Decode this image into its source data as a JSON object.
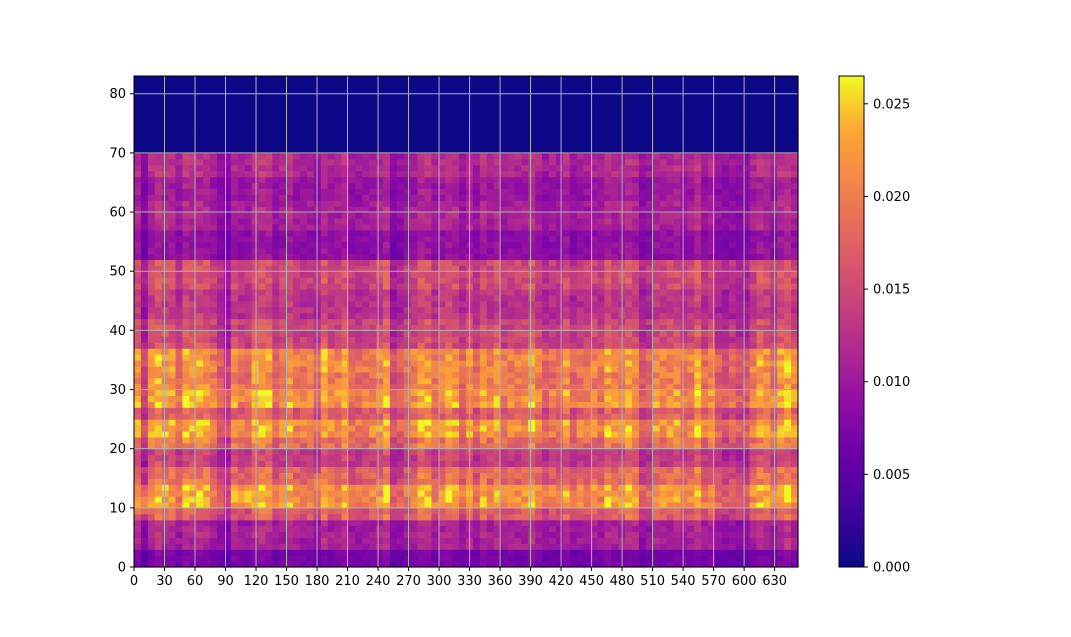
{
  "chart_data": {
    "type": "heatmap",
    "title": "",
    "xlabel": "",
    "ylabel": "",
    "x_range": [
      0,
      653
    ],
    "y_range": [
      0,
      83
    ],
    "x_ticks": [
      0,
      30,
      60,
      90,
      120,
      150,
      180,
      210,
      240,
      270,
      300,
      330,
      360,
      390,
      420,
      450,
      480,
      510,
      540,
      570,
      600,
      630
    ],
    "y_ticks": [
      0,
      10,
      20,
      30,
      40,
      50,
      60,
      70,
      80
    ],
    "grid": true,
    "grid_color": "#b0b0b0",
    "colormap": "plasma",
    "colorbar": {
      "range": [
        0.0,
        0.0265
      ],
      "ticks": [
        0.0,
        0.005,
        0.01,
        0.015,
        0.02,
        0.025
      ],
      "tick_labels": [
        "0.000",
        "0.005",
        "0.010",
        "0.015",
        "0.020",
        "0.025"
      ],
      "placement": "right"
    },
    "empty_band_above_y": 70,
    "row_profile": {
      "y_bands": [
        [
          0,
          3
        ],
        [
          3,
          8
        ],
        [
          8,
          10
        ],
        [
          10,
          14
        ],
        [
          14,
          17
        ],
        [
          17,
          20
        ],
        [
          20,
          22
        ],
        [
          22,
          25
        ],
        [
          25,
          27
        ],
        [
          27,
          30
        ],
        [
          30,
          33
        ],
        [
          33,
          37
        ],
        [
          37,
          42
        ],
        [
          42,
          47
        ],
        [
          47,
          52
        ],
        [
          52,
          57
        ],
        [
          57,
          62
        ],
        [
          62,
          66
        ],
        [
          66,
          70
        ],
        [
          70,
          83
        ]
      ],
      "values": [
        0.007,
        0.011,
        0.017,
        0.022,
        0.018,
        0.014,
        0.019,
        0.022,
        0.017,
        0.022,
        0.02,
        0.021,
        0.015,
        0.013,
        0.015,
        0.009,
        0.011,
        0.01,
        0.012,
        0.0
      ]
    },
    "hotspots": [
      {
        "x": 110,
        "y": 12,
        "value": 0.026
      },
      {
        "x": 5,
        "y": 11,
        "value": 0.023
      },
      {
        "x": 630,
        "y": 12,
        "value": 0.023
      },
      {
        "x": 180,
        "y": 14,
        "value": 0.021
      }
    ],
    "dim_columns": [
      10,
      90,
      180,
      260,
      500,
      580,
      600
    ]
  }
}
